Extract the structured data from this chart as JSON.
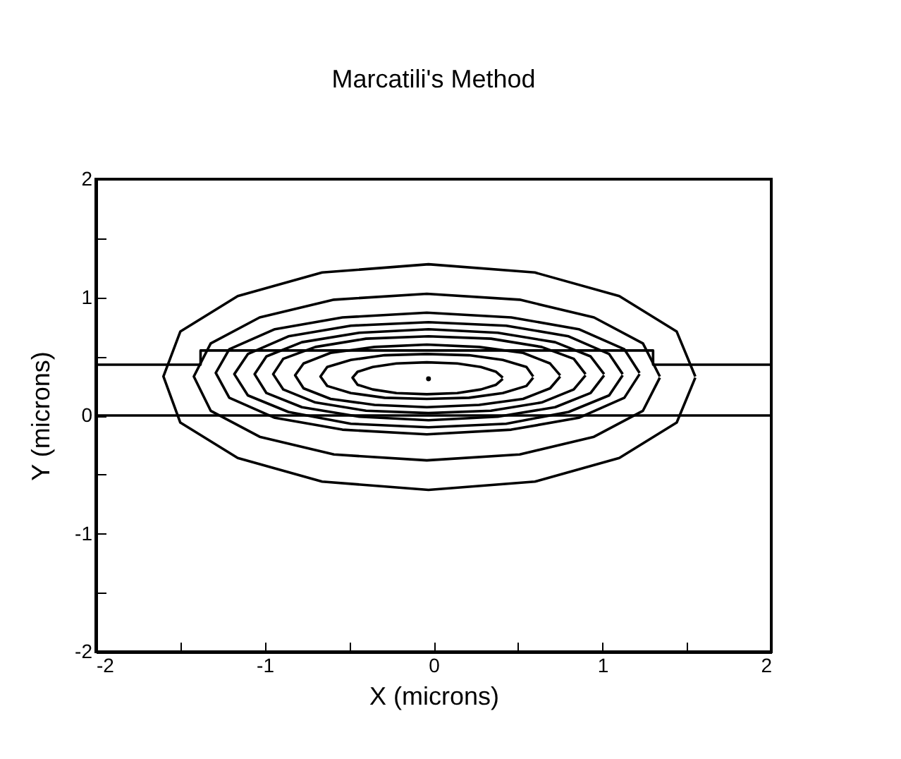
{
  "chart_data": {
    "type": "line",
    "title": "Marcatili's Method",
    "xlabel": "X (microns)",
    "ylabel": "Y (microns)",
    "xlim": [
      -2,
      2
    ],
    "ylim": [
      -2,
      2
    ],
    "xticks": [
      -2,
      {
        "value": -1.5,
        "label": null
      },
      -1,
      {
        "value": -0.5,
        "label": null
      },
      0,
      {
        "value": 0.5,
        "label": null
      },
      1,
      {
        "value": 1.5,
        "label": null
      },
      2
    ],
    "yticks": [
      -2,
      {
        "value": -1.5,
        "label": null
      },
      -1,
      {
        "value": -0.5,
        "label": null
      },
      0,
      {
        "value": 0.5,
        "label": null
      },
      1,
      {
        "value": 1.5,
        "label": null
      },
      2
    ],
    "grid": false,
    "marker": "none",
    "line_style": "solid",
    "series": [
      {
        "color": "#000000",
        "x": [
          -2,
          -1.38,
          -1.38,
          1.3,
          1.3,
          2
        ],
        "values": [
          0.43,
          0.43,
          0.55,
          0.55,
          0.43,
          0.43
        ]
      },
      {
        "color": "#000000",
        "x": [
          -2,
          2
        ],
        "values": [
          0,
          0
        ]
      },
      {
        "color": "#000000",
        "x": [
          1.55,
          1.44,
          1.1,
          0.6,
          -0.03,
          -0.66,
          -1.16,
          -1.5,
          -1.6,
          -1.5,
          -1.16,
          -0.66,
          -0.03,
          0.6,
          1.1,
          1.44,
          1.55
        ],
        "values": [
          0.33,
          0.71,
          1.01,
          1.21,
          1.28,
          1.21,
          1.01,
          0.71,
          0.33,
          -0.06,
          -0.36,
          -0.56,
          -0.63,
          -0.56,
          -0.36,
          -0.06,
          0.32
        ]
      },
      {
        "color": "#000000",
        "x": [
          1.34,
          1.24,
          0.95,
          0.51,
          -0.04,
          -0.59,
          -1.03,
          -1.32,
          -1.42,
          -1.32,
          -1.03,
          -0.59,
          -0.04,
          0.51,
          0.95,
          1.24,
          1.34
        ],
        "values": [
          0.33,
          0.61,
          0.83,
          0.98,
          1.03,
          0.98,
          0.83,
          0.61,
          0.33,
          0.04,
          -0.18,
          -0.33,
          -0.38,
          -0.33,
          -0.18,
          0.04,
          0.32
        ]
      },
      {
        "color": "#000000",
        "x": [
          1.22,
          1.13,
          0.86,
          0.46,
          -0.04,
          -0.54,
          -0.94,
          -1.21,
          -1.29,
          -1.21,
          -0.94,
          -0.54,
          -0.04,
          0.46,
          0.86,
          1.13,
          1.22
        ],
        "values": [
          0.36,
          0.56,
          0.73,
          0.83,
          0.87,
          0.83,
          0.73,
          0.56,
          0.36,
          0.15,
          -0.02,
          -0.12,
          -0.16,
          -0.12,
          -0.02,
          0.15,
          0.35
        ]
      },
      {
        "color": "#000000",
        "x": [
          1.12,
          1.04,
          0.8,
          0.43,
          -0.03,
          -0.49,
          -0.86,
          -1.1,
          -1.18,
          -1.1,
          -0.86,
          -0.49,
          -0.03,
          0.43,
          0.8,
          1.04,
          1.12
        ],
        "values": [
          0.35,
          0.52,
          0.67,
          0.76,
          0.79,
          0.76,
          0.67,
          0.52,
          0.35,
          0.17,
          0.03,
          -0.07,
          -0.1,
          -0.07,
          0.03,
          0.17,
          0.34
        ]
      },
      {
        "color": "#000000",
        "x": [
          1.01,
          0.93,
          0.72,
          0.38,
          -0.03,
          -0.44,
          -0.78,
          -0.99,
          -1.06,
          -0.99,
          -0.78,
          -0.44,
          -0.03,
          0.38,
          0.72,
          0.93,
          1.01
        ],
        "values": [
          0.35,
          0.5,
          0.62,
          0.7,
          0.73,
          0.7,
          0.62,
          0.5,
          0.35,
          0.19,
          0.07,
          -0.01,
          -0.04,
          -0.01,
          0.07,
          0.19,
          0.34
        ]
      },
      {
        "color": "#000000",
        "x": [
          0.9,
          0.83,
          0.64,
          0.34,
          -0.03,
          -0.4,
          -0.7,
          -0.89,
          -0.95,
          -0.89,
          -0.7,
          -0.4,
          -0.03,
          0.34,
          0.64,
          0.83,
          0.9
        ],
        "values": [
          0.35,
          0.48,
          0.58,
          0.65,
          0.67,
          0.65,
          0.58,
          0.48,
          0.35,
          0.22,
          0.11,
          0.04,
          0.02,
          0.04,
          0.11,
          0.22,
          0.34
        ]
      },
      {
        "color": "#000000",
        "x": [
          0.75,
          0.69,
          0.53,
          0.27,
          -0.04,
          -0.35,
          -0.61,
          -0.77,
          -0.82,
          -0.77,
          -0.61,
          -0.35,
          -0.04,
          0.27,
          0.53,
          0.69,
          0.75
        ],
        "values": [
          0.34,
          0.44,
          0.53,
          0.58,
          0.6,
          0.58,
          0.53,
          0.44,
          0.34,
          0.23,
          0.14,
          0.09,
          0.07,
          0.09,
          0.14,
          0.23,
          0.33
        ]
      },
      {
        "color": "#000000",
        "x": [
          0.59,
          0.55,
          0.41,
          0.21,
          -0.04,
          -0.29,
          -0.49,
          -0.63,
          -0.67,
          -0.63,
          -0.49,
          -0.29,
          -0.04,
          0.21,
          0.41,
          0.55,
          0.59
        ],
        "values": [
          0.33,
          0.41,
          0.47,
          0.51,
          0.52,
          0.51,
          0.47,
          0.41,
          0.33,
          0.25,
          0.19,
          0.15,
          0.14,
          0.15,
          0.19,
          0.25,
          0.32
        ]
      },
      {
        "color": "#000000",
        "x": [
          0.41,
          0.37,
          0.28,
          0.14,
          -0.04,
          -0.22,
          -0.36,
          -0.45,
          -0.48,
          -0.45,
          -0.36,
          -0.22,
          -0.04,
          0.14,
          0.28,
          0.37,
          0.41
        ],
        "values": [
          0.32,
          0.37,
          0.41,
          0.44,
          0.45,
          0.44,
          0.41,
          0.37,
          0.32,
          0.26,
          0.22,
          0.19,
          0.18,
          0.19,
          0.22,
          0.26,
          0.31
        ]
      },
      {
        "type": "scatter",
        "color": "#000000",
        "marker": "circle",
        "x": [
          -0.03
        ],
        "values": [
          0.31
        ]
      }
    ]
  }
}
